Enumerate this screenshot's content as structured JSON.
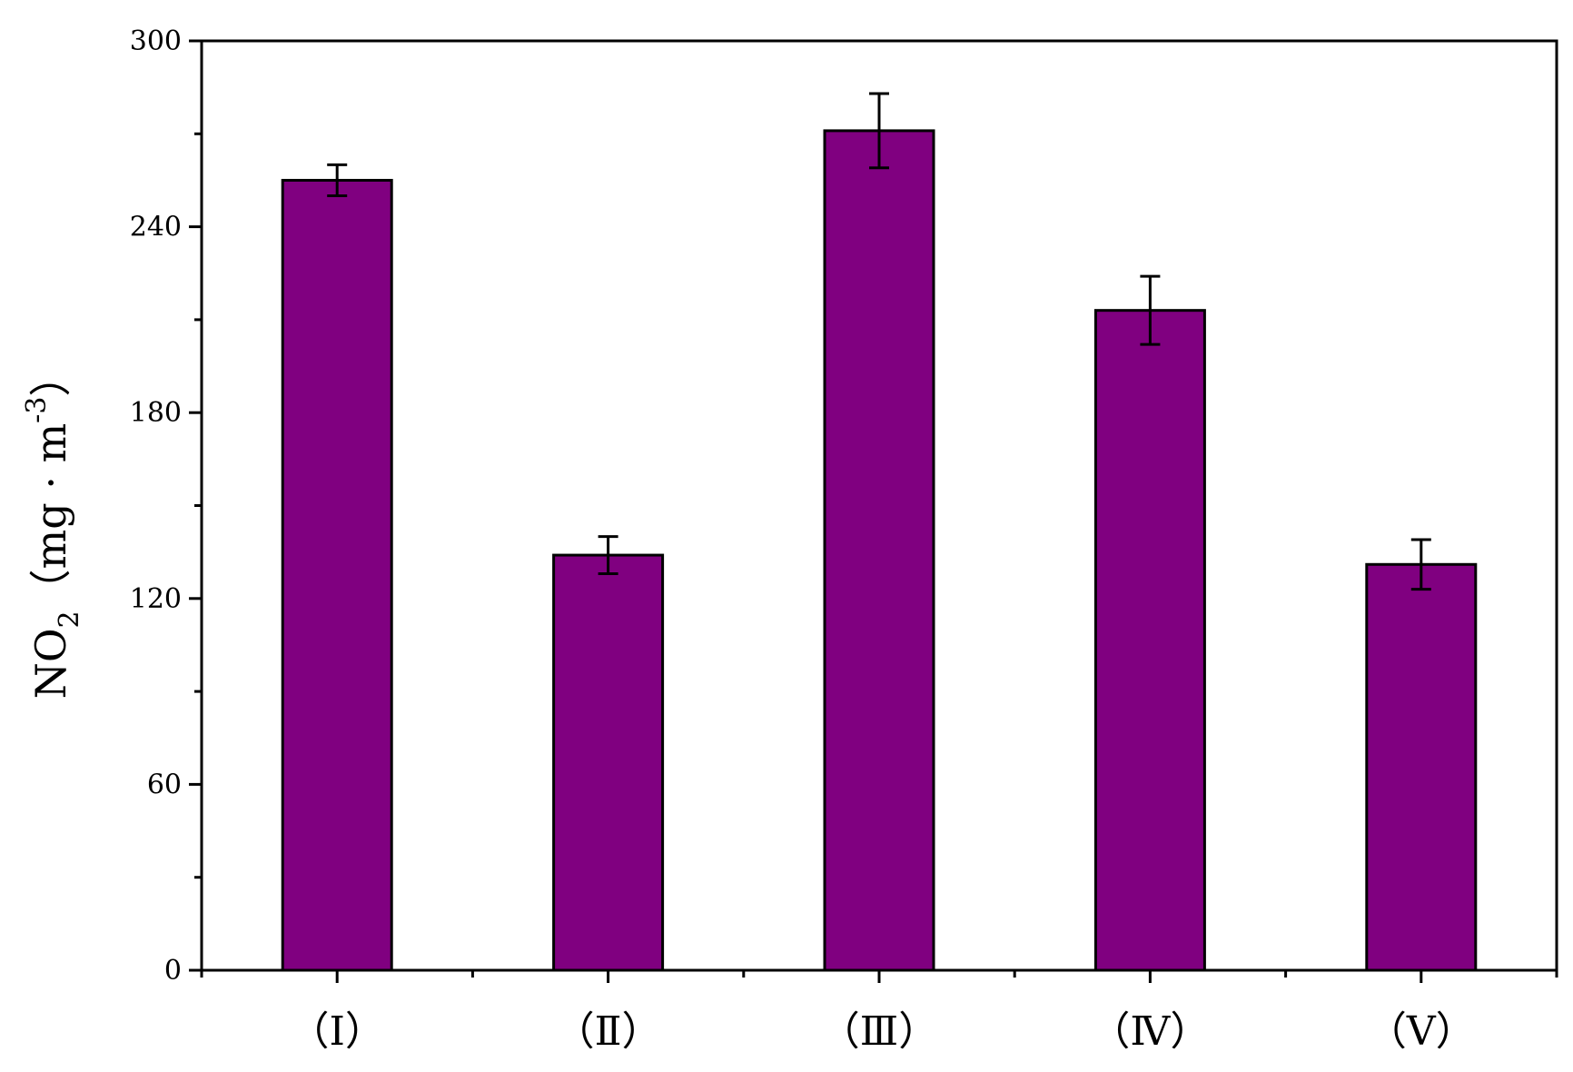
{
  "chart_data": {
    "type": "bar",
    "categories": [
      "（Ⅰ）",
      "（Ⅱ）",
      "（Ⅲ）",
      "（Ⅳ）",
      "（Ⅴ）"
    ],
    "values": [
      255,
      134,
      271,
      213,
      131
    ],
    "errors": [
      5,
      6,
      12,
      11,
      8
    ],
    "title": "",
    "xlabel": "",
    "ylabel": {
      "species": "NO",
      "subscript": "2",
      "unit": "（mg · m",
      "exponent": "-3",
      "close": "）"
    },
    "ylim": [
      0,
      300
    ],
    "yticks": [
      0,
      60,
      120,
      180,
      240,
      300
    ],
    "grid": false,
    "legend": "none",
    "bar_color": "#800080",
    "edge_color": "#000000"
  }
}
